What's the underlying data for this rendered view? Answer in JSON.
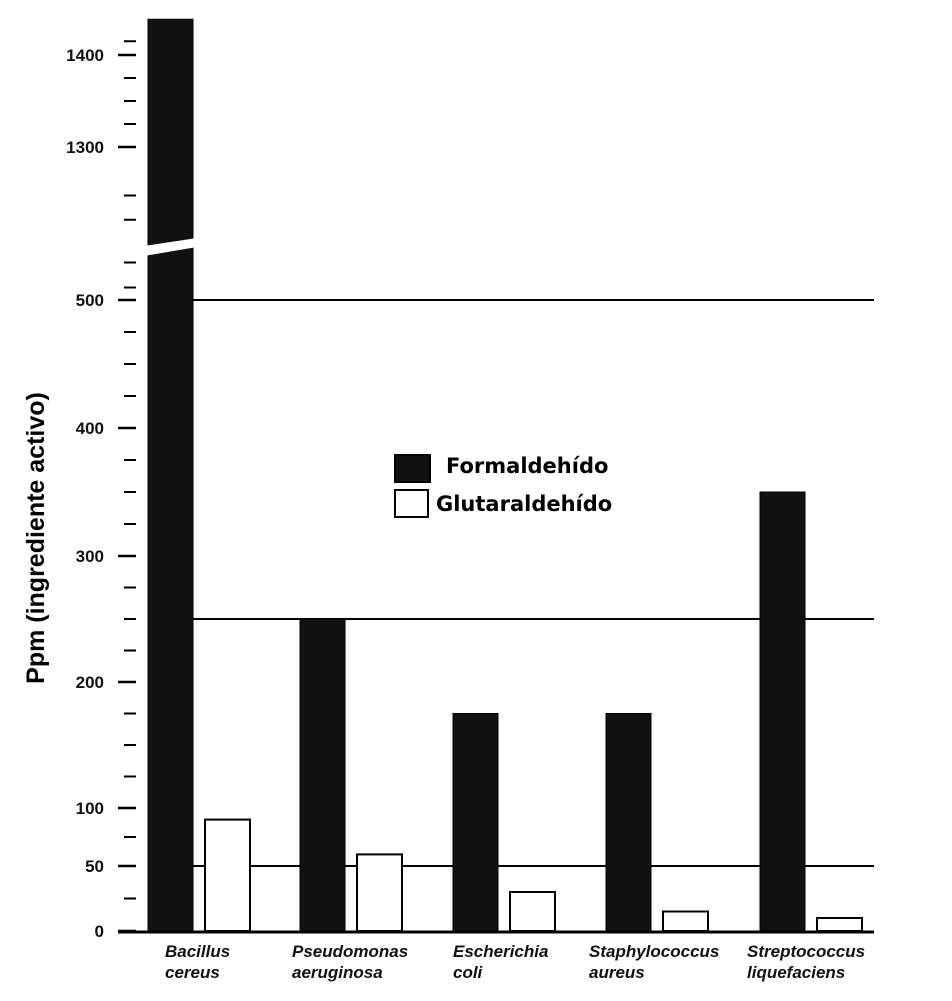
{
  "chart_data": {
    "type": "bar",
    "title": "",
    "xlabel": "",
    "ylabel": "Ppm (ingrediente activo)",
    "categories": [
      [
        "Bacillus",
        "cereus"
      ],
      [
        "Pseudomonas",
        "aeruginosa"
      ],
      [
        "Escherichia",
        "coli"
      ],
      [
        "Staphylococcus",
        "aureus"
      ],
      [
        "Streptococcus",
        "liquefaciens"
      ]
    ],
    "series": [
      {
        "name": "Formaldehído",
        "color": "#111111",
        "values": [
          1465,
          250,
          175,
          175,
          350
        ]
      },
      {
        "name": "Glutaraldehído",
        "color": "#ffffff",
        "values": [
          90,
          60,
          30,
          15,
          10
        ]
      }
    ],
    "y_axis": {
      "scale": "broken (piecewise)",
      "tick_labels": [
        "0",
        "50",
        "100",
        "200",
        "300",
        "400",
        "500",
        "1300",
        "1400"
      ],
      "break_between": [
        500,
        1300
      ]
    },
    "reference_lines": [
      50,
      250,
      500
    ],
    "legend": {
      "placement": "center",
      "entries": [
        "Formaldehído",
        "Glutaraldehído"
      ]
    }
  }
}
